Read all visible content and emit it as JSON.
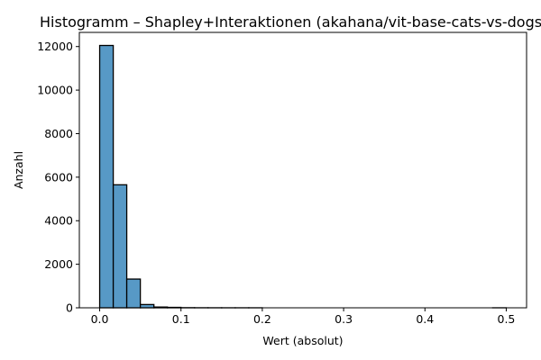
{
  "chart_data": {
    "type": "bar",
    "subtype": "histogram",
    "title": "Histogramm – Shapley+Interaktionen (akahana/vit-base-cats-vs-dogs)",
    "xlabel": "Wert (absolut)",
    "ylabel": "Anzahl",
    "xlim": [
      -0.025,
      0.525
    ],
    "ylim": [
      0,
      12650
    ],
    "x_ticks": [
      0.0,
      0.1,
      0.2,
      0.3,
      0.4,
      0.5
    ],
    "x_tick_labels": [
      "0.0",
      "0.1",
      "0.2",
      "0.3",
      "0.4",
      "0.5"
    ],
    "y_ticks": [
      0,
      2000,
      4000,
      6000,
      8000,
      10000,
      12000
    ],
    "y_tick_labels": [
      "0",
      "2000",
      "4000",
      "6000",
      "8000",
      "10000",
      "12000"
    ],
    "bin_width": 0.0167,
    "bins": [
      {
        "start": 0.0,
        "end": 0.0167,
        "count": 12050
      },
      {
        "start": 0.0167,
        "end": 0.0333,
        "count": 5650
      },
      {
        "start": 0.0333,
        "end": 0.05,
        "count": 1320
      },
      {
        "start": 0.05,
        "end": 0.0667,
        "count": 150
      },
      {
        "start": 0.0667,
        "end": 0.0833,
        "count": 35
      },
      {
        "start": 0.0833,
        "end": 0.1,
        "count": 20
      },
      {
        "start": 0.1,
        "end": 0.1167,
        "count": 6
      },
      {
        "start": 0.1167,
        "end": 0.1333,
        "count": 3
      },
      {
        "start": 0.1333,
        "end": 0.15,
        "count": 2
      },
      {
        "start": 0.15,
        "end": 0.1667,
        "count": 1
      },
      {
        "start": 0.1667,
        "end": 0.1833,
        "count": 1
      },
      {
        "start": 0.1833,
        "end": 0.2,
        "count": 1
      },
      {
        "start": 0.2,
        "end": 0.2167,
        "count": 0
      },
      {
        "start": 0.2167,
        "end": 0.2333,
        "count": 0
      },
      {
        "start": 0.2333,
        "end": 0.25,
        "count": 0
      },
      {
        "start": 0.25,
        "end": 0.2667,
        "count": 0
      },
      {
        "start": 0.2667,
        "end": 0.2833,
        "count": 0
      },
      {
        "start": 0.2833,
        "end": 0.3,
        "count": 0
      },
      {
        "start": 0.3,
        "end": 0.3167,
        "count": 0
      },
      {
        "start": 0.3167,
        "end": 0.3333,
        "count": 0
      },
      {
        "start": 0.3333,
        "end": 0.35,
        "count": 0
      },
      {
        "start": 0.35,
        "end": 0.3667,
        "count": 0
      },
      {
        "start": 0.3667,
        "end": 0.3833,
        "count": 0
      },
      {
        "start": 0.3833,
        "end": 0.4,
        "count": 0
      },
      {
        "start": 0.4,
        "end": 0.4167,
        "count": 0
      },
      {
        "start": 0.4167,
        "end": 0.4333,
        "count": 0
      },
      {
        "start": 0.4333,
        "end": 0.45,
        "count": 0
      },
      {
        "start": 0.45,
        "end": 0.4667,
        "count": 0
      },
      {
        "start": 0.4667,
        "end": 0.4833,
        "count": 0
      },
      {
        "start": 0.4833,
        "end": 0.5,
        "count": 1
      }
    ],
    "grid": false,
    "legend": "none",
    "colors": {
      "bar_fill": "#5799c6",
      "bar_edge": "#000000"
    }
  }
}
